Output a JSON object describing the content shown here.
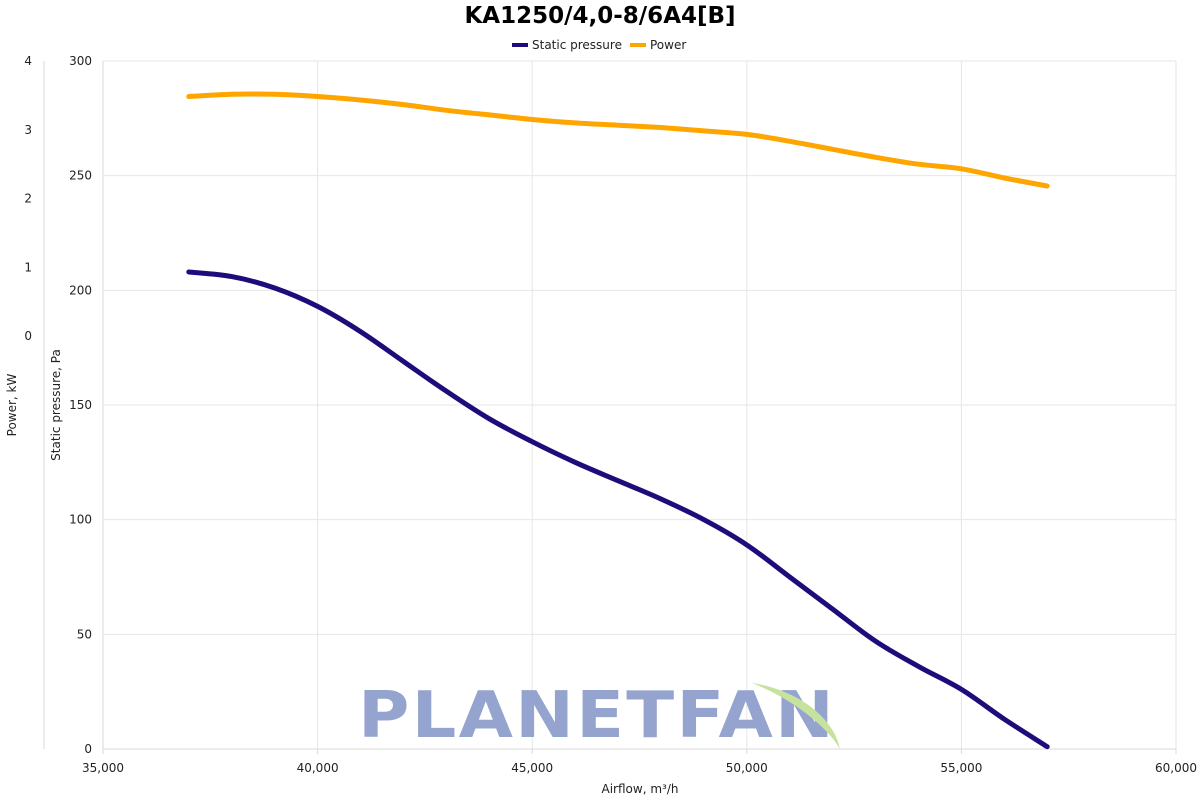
{
  "chart_data": {
    "type": "line",
    "title": "KA1250/4,0-8/6A4[B]",
    "xlabel": "Airflow, m³/h",
    "ylabel_left_outer": "Power, kW",
    "ylabel_left_inner": "Static pressure, Pa",
    "xlim": [
      35000,
      60000
    ],
    "xticks": [
      "35,000",
      "40,000",
      "45,000",
      "50,000",
      "55,000",
      "60,000"
    ],
    "ylim_pressure": [
      0,
      300
    ],
    "yticks_pressure": [
      "0",
      "50",
      "100",
      "150",
      "200",
      "250",
      "300"
    ],
    "ylim_power": [
      0,
      4
    ],
    "yticks_power": [
      "0",
      "1",
      "2",
      "3",
      "4"
    ],
    "grid": true,
    "legend_position": "top-center",
    "series": [
      {
        "name": "Static pressure",
        "axis": "pressure",
        "color": "#1f0c7a",
        "x": [
          37000,
          38000,
          39000,
          40000,
          41000,
          42000,
          43000,
          44000,
          45000,
          46000,
          47000,
          48000,
          49000,
          50000,
          51000,
          52000,
          53000,
          54000,
          55000,
          56000,
          57000
        ],
        "values": [
          208,
          206,
          201,
          193,
          182,
          169,
          156,
          144,
          134,
          125,
          117,
          109,
          100,
          89,
          75,
          61,
          47,
          36,
          26,
          13,
          1
        ]
      },
      {
        "name": "Power",
        "axis": "pressure",
        "color": "#ffa500",
        "x": [
          37000,
          38000,
          39000,
          40000,
          41000,
          42000,
          43000,
          44000,
          45000,
          46000,
          47000,
          48000,
          49000,
          50000,
          51000,
          52000,
          53000,
          54000,
          55000,
          56000,
          57000
        ],
        "values": [
          284.5,
          285.5,
          285.5,
          284.5,
          283,
          281,
          278.5,
          276.5,
          274.5,
          273,
          272,
          271,
          269.5,
          268,
          265,
          261.5,
          258,
          255,
          253,
          249,
          245.5
        ]
      }
    ]
  },
  "watermark": {
    "text": "PLANETFAN",
    "color": "#8fa0cc",
    "leaf_color": "#c5e09a"
  }
}
